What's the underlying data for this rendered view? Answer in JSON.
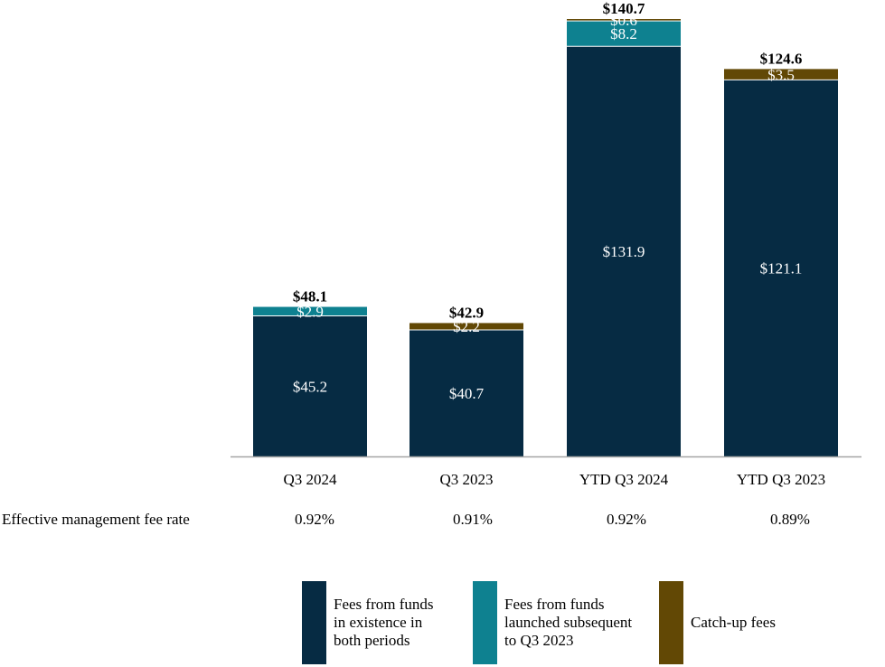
{
  "chart_data": {
    "type": "bar",
    "stacked": true,
    "categories": [
      "Q3 2024",
      "Q3 2023",
      "YTD Q3 2024",
      "YTD Q3 2023"
    ],
    "series": [
      {
        "name": "Fees from funds in existence in both periods",
        "color": "#062b43",
        "values": [
          45.2,
          40.7,
          131.9,
          121.1
        ],
        "labels": [
          "$45.2",
          "$40.7",
          "$131.9",
          "$121.1"
        ]
      },
      {
        "name": "Fees from funds launched subsequent to Q3 2023",
        "color": "#0e8190",
        "values": [
          2.9,
          0,
          8.2,
          0
        ],
        "labels": [
          "$2.9",
          "",
          "$8.2",
          ""
        ]
      },
      {
        "name": "Catch-up fees",
        "color": "#624805",
        "values": [
          0,
          2.2,
          0.6,
          3.5
        ],
        "labels": [
          "",
          "$2.2",
          "$0.6",
          "$3.5"
        ]
      }
    ],
    "totals": [
      48.1,
      42.9,
      140.7,
      124.6
    ],
    "total_labels": [
      "$48.1",
      "$42.9",
      "$140.7",
      "$124.6"
    ],
    "ylim": [
      0,
      140.7
    ],
    "grid": false,
    "legend_position": "bottom"
  },
  "rates": {
    "label": "Effective management fee rate",
    "values": [
      "0.92%",
      "0.91%",
      "0.92%",
      "0.89%"
    ]
  },
  "legend": {
    "items": [
      {
        "text": "Fees from funds\nin existence in\nboth periods",
        "color": "#062b43"
      },
      {
        "text": "Fees from funds\nlaunched subsequent\nto Q3 2023",
        "color": "#0e8190"
      },
      {
        "text": "Catch-up fees",
        "color": "#624805"
      }
    ]
  }
}
